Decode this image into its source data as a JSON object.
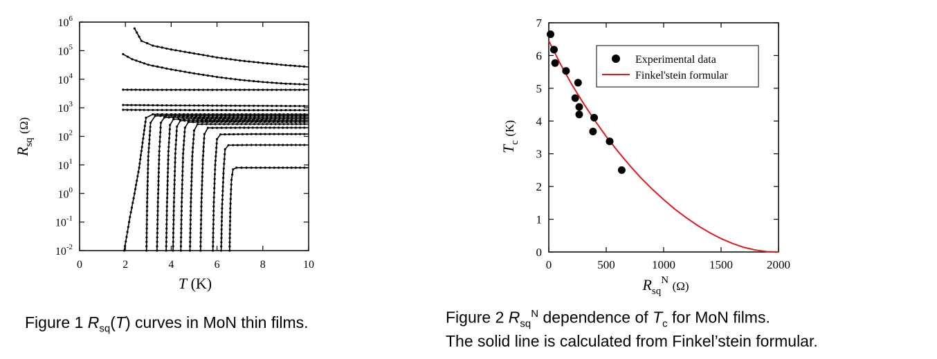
{
  "figure1": {
    "caption": {
      "prefix": "Figure 1 ",
      "r": "R",
      "sub": "sq",
      "lp": "(",
      "t": "T",
      "rest": ") curves in MoN thin films."
    },
    "ylabel": {
      "r": "R",
      "sub": "sq",
      "unit": "(Ω)"
    },
    "xlabel": {
      "t": "T",
      "unit": "(K)"
    },
    "chart_data": {
      "type": "line",
      "yscale": "log",
      "xlim": [
        0,
        10
      ],
      "ylim_exp": [
        -2,
        6
      ],
      "x_ticks": [
        "0",
        "2",
        "4",
        "6",
        "8",
        "10"
      ],
      "y_tick_exponents": [
        "-2",
        "-1",
        "0",
        "1",
        "2",
        "3",
        "4",
        "5",
        "6"
      ],
      "series": [
        {
          "x": [
            2.4,
            2.7,
            3.2,
            4.0,
            5.0,
            6.0,
            7.0,
            8.0,
            9.0,
            10.0
          ],
          "y": [
            600000,
            220000,
            150000,
            110000,
            80000,
            58000,
            45000,
            37000,
            31000,
            27000
          ]
        },
        {
          "x": [
            1.9,
            2.3,
            3.0,
            4.0,
            5.0,
            6.0,
            7.0,
            8.0,
            9.0,
            10.0
          ],
          "y": [
            75000,
            50000,
            32000,
            22000,
            16000,
            12000,
            9500,
            8000,
            7000,
            6500
          ]
        },
        {
          "x": [
            1.9,
            3.0,
            4.0,
            5.0,
            6.0,
            7.0,
            8.0,
            9.0,
            10.0
          ],
          "y": [
            4300,
            4250,
            4250,
            4250,
            4250,
            4250,
            4250,
            4250,
            4250
          ]
        },
        {
          "x": [
            1.9,
            3.0,
            4.0,
            5.0,
            6.0,
            7.0,
            8.0,
            9.0,
            10.0
          ],
          "y": [
            1250,
            1230,
            1210,
            1200,
            1190,
            1180,
            1170,
            1160,
            1150
          ]
        },
        {
          "x": [
            1.9,
            3.0,
            4.0,
            5.0,
            6.0,
            7.0,
            8.0,
            9.0,
            10.0
          ],
          "y": [
            850,
            840,
            835,
            830,
            828,
            826,
            825,
            824,
            823
          ]
        },
        {
          "x": [
            1.95,
            2.05,
            2.2,
            2.4,
            2.6,
            2.75,
            2.9,
            3.2,
            4.0,
            6.0,
            8.0,
            10.0
          ],
          "y": [
            0.01,
            0.03,
            0.15,
            1,
            8,
            60,
            450,
            590,
            590,
            590,
            590,
            590
          ]
        },
        {
          "x": [
            2.92,
            2.95,
            3.0,
            3.1,
            3.3,
            4.0,
            6.0,
            8.0,
            10.0
          ],
          "y": [
            0.01,
            0.5,
            20,
            300,
            520,
            530,
            530,
            530,
            530
          ]
        },
        {
          "x": [
            3.38,
            3.42,
            3.48,
            3.55,
            3.7,
            4.5,
            6.0,
            8.0,
            10.0
          ],
          "y": [
            0.01,
            0.5,
            30,
            300,
            460,
            470,
            470,
            470,
            470
          ]
        },
        {
          "x": [
            3.78,
            3.82,
            3.88,
            3.95,
            4.1,
            5.0,
            6.5,
            8.0,
            10.0
          ],
          "y": [
            0.01,
            0.5,
            30,
            250,
            400,
            410,
            410,
            410,
            410
          ]
        },
        {
          "x": [
            4.08,
            4.12,
            4.18,
            4.25,
            4.4,
            5.5,
            7.0,
            8.5,
            10.0
          ],
          "y": [
            0.01,
            0.5,
            25,
            220,
            355,
            360,
            360,
            360,
            360
          ]
        },
        {
          "x": [
            4.42,
            4.46,
            4.52,
            4.6,
            4.75,
            6.0,
            7.5,
            10.0
          ],
          "y": [
            0.01,
            0.5,
            25,
            200,
            315,
            320,
            320,
            320
          ]
        },
        {
          "x": [
            4.82,
            4.86,
            4.92,
            5.0,
            5.15,
            6.5,
            8.0,
            10.0
          ],
          "y": [
            0.01,
            0.5,
            20,
            160,
            268,
            270,
            270,
            270
          ]
        },
        {
          "x": [
            5.28,
            5.32,
            5.38,
            5.45,
            5.6,
            7.0,
            8.5,
            10.0
          ],
          "y": [
            0.01,
            0.5,
            15,
            120,
            198,
            200,
            200,
            200
          ]
        },
        {
          "x": [
            5.82,
            5.86,
            5.92,
            6.0,
            6.15,
            7.5,
            8.5,
            10.0
          ],
          "y": [
            0.01,
            0.5,
            10,
            80,
            117,
            120,
            120,
            120
          ]
        },
        {
          "x": [
            6.18,
            6.22,
            6.28,
            6.35,
            6.5,
            7.5,
            8.5,
            10.0
          ],
          "y": [
            0.01,
            0.3,
            5,
            35,
            49,
            50,
            50,
            50
          ]
        },
        {
          "x": [
            6.55,
            6.58,
            6.63,
            6.7,
            6.85,
            7.5,
            8.5,
            10.0
          ],
          "y": [
            0.01,
            0.3,
            3,
            7,
            8,
            8,
            8,
            8
          ]
        }
      ]
    }
  },
  "figure2": {
    "caption_line1": {
      "prefix": "Figure 2 ",
      "r": "R",
      "sub": "sq",
      "sup": "N",
      "mid": " dependence of ",
      "t": "T",
      "tsub": "c",
      "rest": " for MoN films."
    },
    "caption_line2": "The solid line is calculated from  Finkel’stein formular.",
    "ylabel": {
      "t": "T",
      "sub": "c",
      "unit": "(K)"
    },
    "xlabel": {
      "r": "R",
      "sub": "sq",
      "sup": "N",
      "unit": "(Ω)"
    },
    "legend": {
      "scatter_label": "Experimental data",
      "line_label": "Finkel'stein formular"
    },
    "chart_data": {
      "type": "scatter",
      "xlim": [
        0,
        2000
      ],
      "ylim": [
        0,
        7
      ],
      "x_ticks": [
        "0",
        "500",
        "1000",
        "1500",
        "2000"
      ],
      "y_ticks": [
        "0",
        "1",
        "2",
        "3",
        "4",
        "5",
        "6",
        "7"
      ],
      "legend_position": "top-right",
      "series": [
        {
          "name": "Experimental data",
          "type": "scatter",
          "color": "#000000",
          "x": [
            15,
            45,
            55,
            150,
            230,
            255,
            265,
            265,
            385,
            395,
            530,
            635
          ],
          "y": [
            6.65,
            6.18,
            5.77,
            5.53,
            4.7,
            5.17,
            4.43,
            4.2,
            3.68,
            4.1,
            3.38,
            2.5
          ]
        },
        {
          "name": "Finkel'stein formular",
          "type": "line",
          "color": "#e0191e",
          "x": [
            0,
            100,
            200,
            300,
            400,
            500,
            600,
            700,
            800,
            900,
            1000,
            1100,
            1200,
            1300,
            1400,
            1500,
            1600,
            1700,
            1800,
            1900,
            2000
          ],
          "y": [
            6.45,
            5.75,
            5.12,
            4.55,
            4.02,
            3.53,
            3.08,
            2.66,
            2.27,
            1.92,
            1.6,
            1.3,
            1.04,
            0.8,
            0.59,
            0.41,
            0.26,
            0.14,
            0.06,
            0.01,
            0.0
          ]
        }
      ]
    }
  }
}
